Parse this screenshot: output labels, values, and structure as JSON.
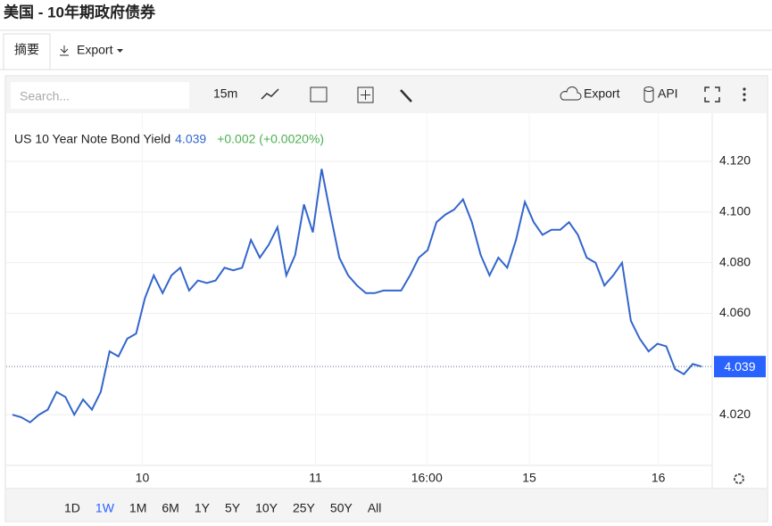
{
  "header": {
    "title": "美国 - 10年期政府债券"
  },
  "tabs": [
    "摘要",
    "Export"
  ],
  "toolbar": {
    "search_placeholder": "Search...",
    "interval": "15m",
    "export": "Export",
    "api": "API"
  },
  "chart_data": {
    "type": "line",
    "title": "US 10 Year Note Bond Yield",
    "price": 4.039,
    "change": "+0.002 (+0.0020%)",
    "color": "#3366cc",
    "last_value": 4.039,
    "grid": true,
    "values": [
      4.02,
      4.019,
      4.017,
      4.02,
      4.022,
      4.029,
      4.027,
      4.02,
      4.026,
      4.022,
      4.029,
      4.045,
      4.043,
      4.05,
      4.052,
      4.066,
      4.075,
      4.068,
      4.075,
      4.078,
      4.069,
      4.073,
      4.072,
      4.073,
      4.078,
      4.077,
      4.078,
      4.089,
      4.082,
      4.087,
      4.094,
      4.075,
      4.083,
      4.103,
      4.092,
      4.117,
      4.099,
      4.082,
      4.075,
      4.071,
      4.068,
      4.068,
      4.069,
      4.069,
      4.069,
      4.075,
      4.082,
      4.085,
      4.096,
      4.099,
      4.101,
      4.105,
      4.096,
      4.083,
      4.075,
      4.082,
      4.078,
      4.089,
      4.104,
      4.096,
      4.091,
      4.093,
      4.093,
      4.096,
      4.091,
      4.082,
      4.08,
      4.071,
      4.075,
      4.08,
      4.057,
      4.05,
      4.045,
      4.048,
      4.047,
      4.038,
      4.036,
      4.04,
      4.039
    ],
    "xlim": [
      -0.8,
      79.2
    ],
    "xticks": [
      {
        "value": 14.7,
        "label": "10"
      },
      {
        "value": 34.3,
        "label": "11"
      },
      {
        "value": 46.9,
        "label": "16:00"
      },
      {
        "value": 58.5,
        "label": "15"
      },
      {
        "value": 73.1,
        "label": "16"
      }
    ],
    "ylim": [
      4.0,
      4.139
    ],
    "yticks": [
      {
        "value": 4.02,
        "label": "4.020"
      },
      {
        "value": 4.06,
        "label": "4.060"
      },
      {
        "value": 4.08,
        "label": "4.080"
      },
      {
        "value": 4.1,
        "label": "4.100"
      },
      {
        "value": 4.12,
        "label": "4.120"
      }
    ]
  },
  "ranges": [
    "1D",
    "1W",
    "1M",
    "6M",
    "1Y",
    "5Y",
    "10Y",
    "25Y",
    "50Y",
    "All"
  ],
  "selected_range": 1
}
